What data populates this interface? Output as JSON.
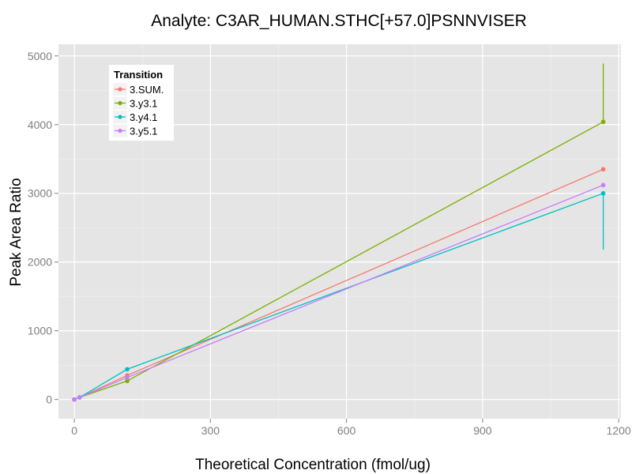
{
  "chart_data": {
    "type": "line",
    "title": "Analyte: C3AR_HUMAN.STHC[+57.0]PSNNVISER",
    "xlabel": "Theoretical Concentration (fmol/ug)",
    "ylabel": "Peak Area Ratio",
    "xlim": [
      -35,
      1205
    ],
    "ylim": [
      -280,
      5170
    ],
    "x_ticks": [
      0,
      300,
      600,
      900,
      1200
    ],
    "y_ticks": [
      0,
      1000,
      2000,
      3000,
      4000,
      5000
    ],
    "grid": true,
    "legend": {
      "title": "Transition",
      "position": "top-left"
    },
    "series": [
      {
        "name": "3.SUM.",
        "color": "#F8766D",
        "x": [
          0,
          11.7,
          116.6,
          1166
        ],
        "y": [
          0,
          30,
          350,
          3350
        ],
        "err_low": [
          0,
          0,
          0,
          0
        ],
        "err_high": [
          0,
          0,
          0,
          0
        ]
      },
      {
        "name": "3.y3.1",
        "color": "#7CAE00",
        "x": [
          0,
          11.7,
          116.6,
          1166
        ],
        "y": [
          0,
          30,
          270,
          4040
        ],
        "err_low": [
          0,
          0,
          0,
          0
        ],
        "err_high": [
          0,
          0,
          0,
          850
        ]
      },
      {
        "name": "3.y4.1",
        "color": "#00BFC4",
        "x": [
          0,
          11.7,
          116.6,
          1166
        ],
        "y": [
          0,
          30,
          440,
          3000
        ],
        "err_low": [
          0,
          0,
          0,
          820
        ],
        "err_high": [
          0,
          0,
          0,
          0
        ]
      },
      {
        "name": "3.y5.1",
        "color": "#C77CFF",
        "x": [
          0,
          11.7,
          116.6,
          1166
        ],
        "y": [
          0,
          30,
          320,
          3120
        ],
        "err_low": [
          0,
          0,
          0,
          0
        ],
        "err_high": [
          0,
          0,
          0,
          0
        ]
      }
    ]
  }
}
